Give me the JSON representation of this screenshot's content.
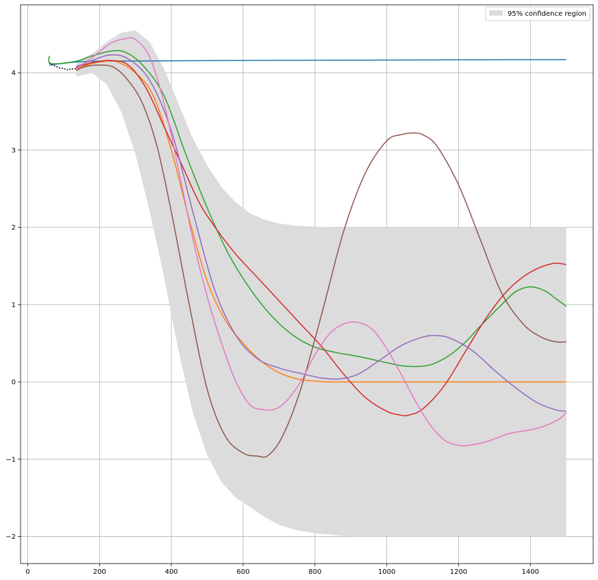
{
  "chart_data": {
    "type": "line",
    "title": "",
    "xlabel": "",
    "ylabel": "",
    "xlim": [
      -20,
      1575
    ],
    "ylim": [
      -2.35,
      4.88
    ],
    "grid": true,
    "legend_position": "top-right",
    "x_ticks": [
      0,
      200,
      400,
      600,
      800,
      1000,
      1200,
      1400
    ],
    "x_tick_labels": [
      "0",
      "200",
      "400",
      "600",
      "800",
      "1000",
      "1200",
      "1400"
    ],
    "y_ticks": [
      -2,
      -1,
      0,
      1,
      2,
      3,
      4
    ],
    "y_tick_labels": [
      "−2",
      "−1",
      "0",
      "1",
      "2",
      "3",
      "4"
    ],
    "legend": [
      {
        "label": "95% confidence region",
        "color": "#dcdcdc"
      }
    ],
    "confidence_region": {
      "color": "#dcdcdc",
      "x": [
        135,
        180,
        220,
        260,
        300,
        340,
        380,
        420,
        460,
        500,
        540,
        580,
        620,
        660,
        700,
        750,
        800,
        850,
        900,
        1000,
        1100,
        1200,
        1300,
        1400,
        1500
      ],
      "upper": [
        4.15,
        4.25,
        4.4,
        4.52,
        4.55,
        4.4,
        4.05,
        3.6,
        3.15,
        2.8,
        2.52,
        2.32,
        2.18,
        2.1,
        2.05,
        2.02,
        2.01,
        2.0,
        2.0,
        2.0,
        2.0,
        2.0,
        2.0,
        2.0,
        2.0
      ],
      "lower": [
        3.95,
        4.0,
        3.85,
        3.5,
        2.95,
        2.2,
        1.35,
        0.4,
        -0.4,
        -0.95,
        -1.3,
        -1.5,
        -1.62,
        -1.75,
        -1.85,
        -1.92,
        -1.96,
        -1.98,
        -2.0,
        -2.0,
        -2.0,
        -2.0,
        -2.0,
        -2.0,
        -2.0
      ]
    },
    "observed": {
      "color": "#000000",
      "x": [
        60,
        65,
        70,
        75,
        80,
        85,
        90,
        95,
        100,
        105,
        110,
        115,
        120,
        125,
        130,
        135
      ],
      "y": [
        4.13,
        4.11,
        4.1,
        4.09,
        4.08,
        4.07,
        4.06,
        4.06,
        4.05,
        4.05,
        4.04,
        4.05,
        4.04,
        4.05,
        4.05,
        4.06
      ]
    },
    "series": [
      {
        "color": "#1f77b4",
        "x": [
          60,
          135,
          200,
          400,
          600,
          800,
          1000,
          1200,
          1400,
          1500
        ],
        "y": [
          4.1,
          4.14,
          4.15,
          4.155,
          4.16,
          4.162,
          4.165,
          4.168,
          4.17,
          4.17
        ]
      },
      {
        "color": "#ff7f0e",
        "x": [
          135,
          180,
          220,
          250,
          300,
          350,
          400,
          450,
          500,
          550,
          600,
          650,
          700,
          750,
          800,
          850,
          900,
          1000,
          1200,
          1400,
          1500
        ],
        "y": [
          4.05,
          4.12,
          4.15,
          4.14,
          4.0,
          3.7,
          3.0,
          2.1,
          1.3,
          0.8,
          0.5,
          0.27,
          0.12,
          0.04,
          0.01,
          0.0,
          0.0,
          0.0,
          0.0,
          0.0,
          0.0
        ]
      },
      {
        "color": "#2ca02c",
        "x": [
          60,
          65,
          135,
          180,
          230,
          270,
          320,
          380,
          440,
          500,
          560,
          620,
          680,
          740,
          800,
          860,
          920,
          980,
          1040,
          1080,
          1120,
          1170,
          1220,
          1260,
          1320,
          1360,
          1400,
          1440,
          1470,
          1500
        ],
        "y": [
          4.22,
          4.12,
          4.15,
          4.22,
          4.28,
          4.27,
          4.1,
          3.7,
          2.95,
          2.25,
          1.65,
          1.2,
          0.85,
          0.6,
          0.45,
          0.38,
          0.33,
          0.27,
          0.21,
          0.2,
          0.22,
          0.33,
          0.52,
          0.72,
          1.0,
          1.17,
          1.23,
          1.18,
          1.08,
          0.98
        ]
      },
      {
        "color": "#d62728",
        "x": [
          135,
          180,
          230,
          280,
          330,
          380,
          430,
          480,
          530,
          580,
          640,
          700,
          760,
          820,
          880,
          940,
          1000,
          1040,
          1060,
          1100,
          1160,
          1220,
          1280,
          1340,
          1400,
          1460,
          1500
        ],
        "y": [
          4.07,
          4.13,
          4.16,
          4.1,
          3.8,
          3.3,
          2.8,
          2.3,
          1.95,
          1.65,
          1.35,
          1.05,
          0.75,
          0.45,
          0.1,
          -0.2,
          -0.38,
          -0.43,
          -0.43,
          -0.35,
          -0.05,
          0.4,
          0.85,
          1.2,
          1.42,
          1.53,
          1.52
        ]
      },
      {
        "color": "#9467bd",
        "x": [
          135,
          180,
          230,
          280,
          340,
          400,
          460,
          520,
          580,
          640,
          700,
          760,
          820,
          870,
          920,
          980,
          1040,
          1100,
          1140,
          1180,
          1240,
          1300,
          1360,
          1420,
          1470,
          1500
        ],
        "y": [
          4.08,
          4.16,
          4.23,
          4.18,
          3.9,
          3.25,
          2.2,
          1.2,
          0.6,
          0.3,
          0.18,
          0.11,
          0.05,
          0.04,
          0.1,
          0.28,
          0.47,
          0.58,
          0.6,
          0.56,
          0.4,
          0.15,
          -0.08,
          -0.27,
          -0.36,
          -0.38
        ]
      },
      {
        "color": "#8c564b",
        "x": [
          135,
          160,
          200,
          240,
          280,
          320,
          360,
          400,
          450,
          500,
          550,
          600,
          640,
          670,
          710,
          760,
          820,
          880,
          940,
          1000,
          1040,
          1070,
          1100,
          1140,
          1200,
          1260,
          1320,
          1380,
          1430,
          1470,
          1500
        ],
        "y": [
          4.03,
          4.08,
          4.1,
          4.07,
          3.9,
          3.6,
          3.05,
          2.2,
          1.0,
          -0.1,
          -0.7,
          -0.92,
          -0.96,
          -0.95,
          -0.7,
          -0.1,
          0.9,
          1.95,
          2.7,
          3.12,
          3.2,
          3.22,
          3.2,
          3.05,
          2.55,
          1.85,
          1.15,
          0.75,
          0.58,
          0.52,
          0.52
        ]
      },
      {
        "color": "#e377c2",
        "x": [
          135,
          180,
          230,
          270,
          300,
          340,
          380,
          420,
          460,
          500,
          540,
          580,
          620,
          660,
          690,
          720,
          760,
          800,
          840,
          880,
          920,
          960,
          1000,
          1040,
          1080,
          1120,
          1160,
          1200,
          1230,
          1280,
          1340,
          1400,
          1440,
          1480,
          1500
        ],
        "y": [
          4.05,
          4.2,
          4.38,
          4.44,
          4.43,
          4.2,
          3.6,
          2.75,
          1.85,
          1.1,
          0.5,
          0.0,
          -0.3,
          -0.36,
          -0.35,
          -0.25,
          0.0,
          0.35,
          0.62,
          0.75,
          0.77,
          0.68,
          0.43,
          0.1,
          -0.25,
          -0.55,
          -0.75,
          -0.82,
          -0.82,
          -0.77,
          -0.67,
          -0.62,
          -0.57,
          -0.48,
          -0.4
        ]
      }
    ]
  }
}
